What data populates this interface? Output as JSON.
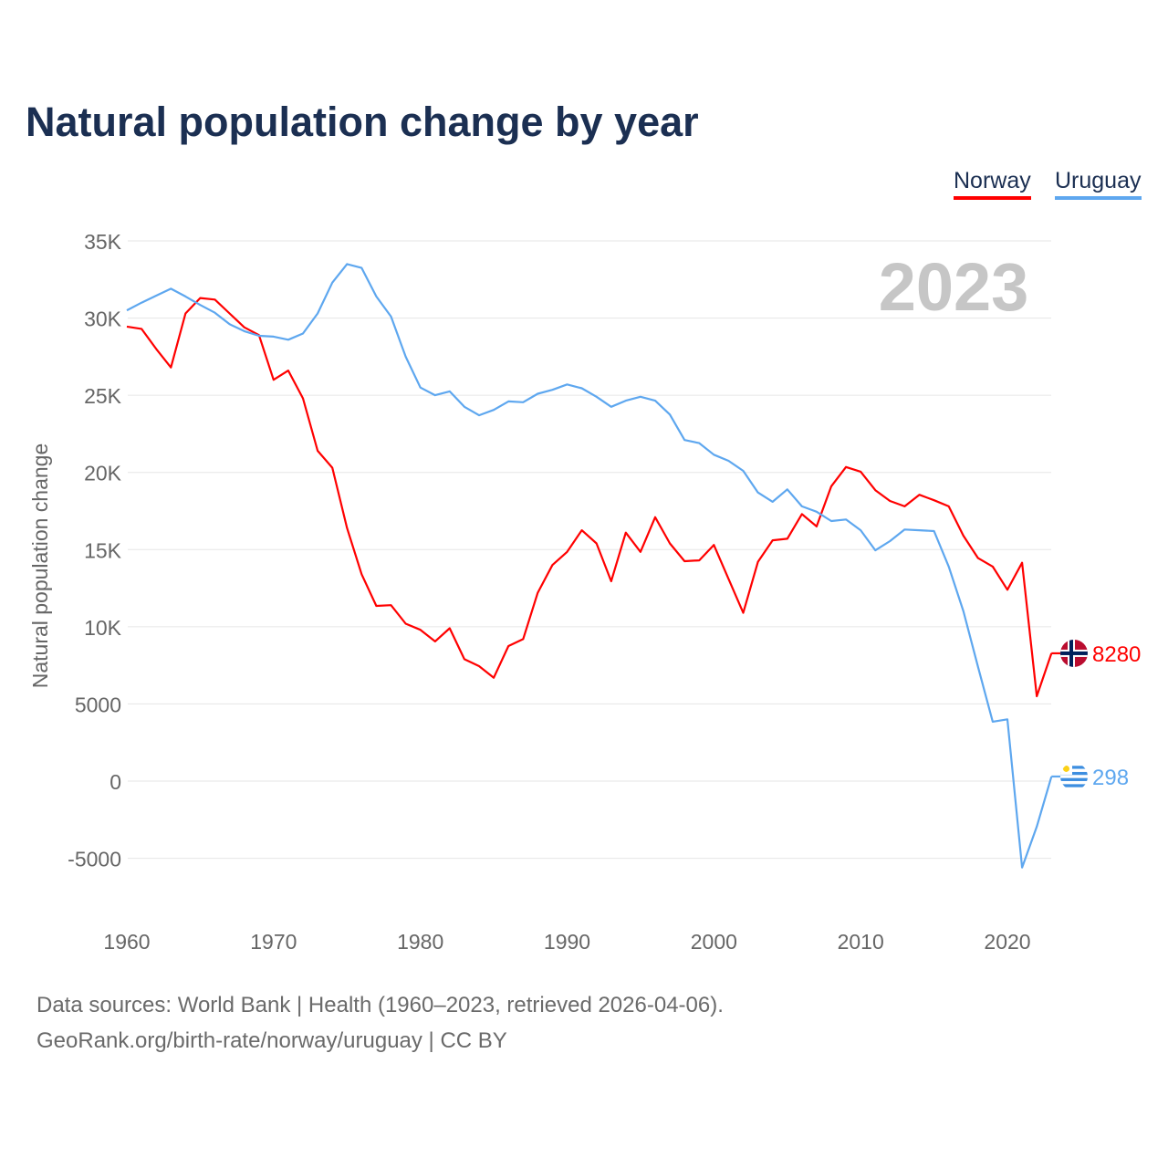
{
  "title": "Natural population change by year",
  "year_badge": "2023",
  "footer": {
    "line1": "Data sources: World Bank | Health (1960–2023, retrieved 2026-04-06).",
    "line2": "GeoRank.org/birth-rate/norway/uruguay | CC BY"
  },
  "chart_data": {
    "type": "line",
    "title": "Natural population change by year",
    "xlabel": "",
    "ylabel": "Natural population change",
    "xlim": [
      1960,
      2023
    ],
    "ylim": [
      -5000,
      35000
    ],
    "x_ticks": [
      1960,
      1970,
      1980,
      1990,
      2000,
      2010,
      2020
    ],
    "y_ticks": [
      -5000,
      0,
      5000,
      10000,
      15000,
      20000,
      25000,
      30000,
      35000
    ],
    "y_tick_labels": [
      "-5000",
      "0",
      "5000",
      "10K",
      "15K",
      "20K",
      "25K",
      "30K",
      "35K"
    ],
    "grid": true,
    "legend_position": "top-right",
    "start_year": 1960,
    "series": [
      {
        "name": "Norway",
        "color": "#ff0000",
        "end_label": "8280",
        "values": [
          29450,
          29300,
          28000,
          26800,
          30300,
          31300,
          31200,
          30300,
          29400,
          28900,
          26000,
          26600,
          24800,
          21400,
          20300,
          16400,
          13400,
          11350,
          11400,
          10200,
          9800,
          9050,
          9900,
          7900,
          7450,
          6700,
          8750,
          9200,
          12200,
          14000,
          14850,
          16250,
          15400,
          12950,
          16100,
          14850,
          17100,
          15400,
          14250,
          14300,
          15300,
          13100,
          10900,
          14200,
          15600,
          15700,
          17300,
          16500,
          19100,
          20350,
          20050,
          18850,
          18150,
          17800,
          18550,
          18200,
          17800,
          15900,
          14450,
          13900,
          12400,
          14150,
          5500,
          8280
        ]
      },
      {
        "name": "Uruguay",
        "color": "#5ea7ef",
        "end_label": "298",
        "values": [
          30500,
          31000,
          31450,
          31900,
          31400,
          30850,
          30350,
          29600,
          29150,
          28850,
          28800,
          28600,
          29000,
          30300,
          32300,
          33500,
          33250,
          31400,
          30100,
          27500,
          25500,
          25000,
          25250,
          24250,
          23700,
          24050,
          24600,
          24550,
          25100,
          25350,
          25700,
          25450,
          24900,
          24250,
          24650,
          24900,
          24650,
          23750,
          22100,
          21900,
          21150,
          20750,
          20100,
          18700,
          18100,
          18900,
          17800,
          17450,
          16850,
          16950,
          16250,
          14950,
          15550,
          16300,
          16250,
          16200,
          13900,
          11000,
          7400,
          3850,
          4000,
          -5600,
          -2950,
          298
        ]
      }
    ]
  }
}
